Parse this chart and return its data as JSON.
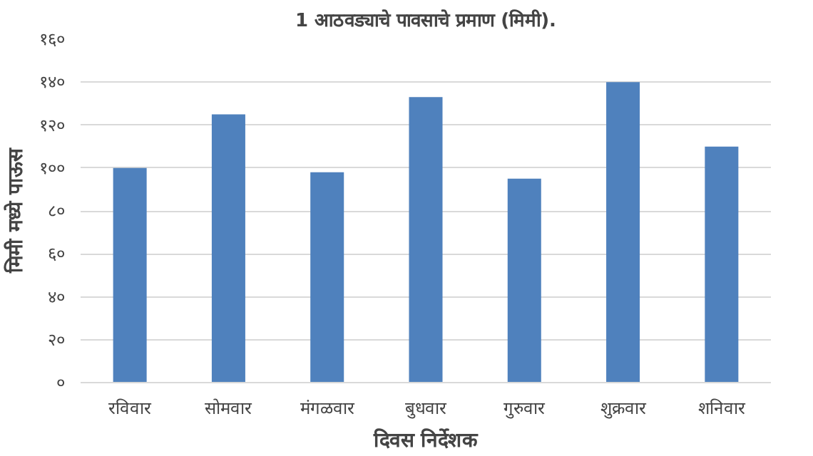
{
  "chart_data": {
    "type": "bar",
    "title": "1 आठवड्याचे पावसाचे प्रमाण (मिमी).",
    "xlabel": "दिवस निर्देशक",
    "ylabel": "मिमी मध्ये पाऊस",
    "categories": [
      "रविवार",
      "सोमवार",
      "मंगळवार",
      "बुधवार",
      "गुरुवार",
      "शुक्रवार",
      "शनिवार"
    ],
    "series": [
      {
        "color": "#4f81bd",
        "values": [
          100,
          125,
          98,
          133,
          95,
          140,
          110
        ]
      }
    ],
    "ylim": [
      0,
      160
    ],
    "yticks": [
      {
        "value": 0,
        "label": "०"
      },
      {
        "value": 20,
        "label": "२०"
      },
      {
        "value": 40,
        "label": "४०"
      },
      {
        "value": 60,
        "label": "६०"
      },
      {
        "value": 80,
        "label": "८०"
      },
      {
        "value": 100,
        "label": "१००"
      },
      {
        "value": 120,
        "label": "१२०"
      },
      {
        "value": 140,
        "label": "१४०"
      },
      {
        "value": 160,
        "label": "१६०"
      }
    ],
    "grid": "y"
  }
}
